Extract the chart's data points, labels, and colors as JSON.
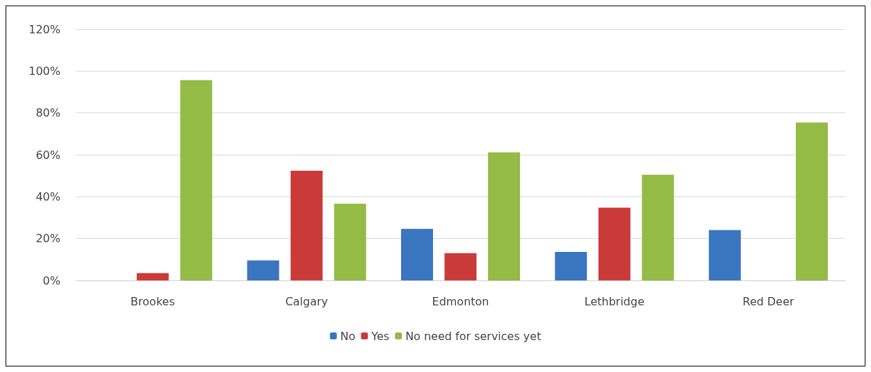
{
  "chart_data": {
    "type": "bar",
    "categories": [
      "Brookes",
      "Calgary",
      "Edmonton",
      "Lethbridge",
      "Red Deer"
    ],
    "series": [
      {
        "name": "No",
        "color": "#3a75c0",
        "values": [
          0,
          9.5,
          24.6,
          13.6,
          24
        ]
      },
      {
        "name": "Yes",
        "color": "#c93a38",
        "values": [
          3.5,
          52.4,
          13,
          34.7,
          0
        ]
      },
      {
        "name": "No need for services yet",
        "color": "#93bb45",
        "values": [
          95.6,
          36.6,
          61.2,
          50.5,
          75.4
        ]
      }
    ],
    "ylim": [
      0,
      120
    ],
    "yticks": [
      {
        "value": 0,
        "label": "0%"
      },
      {
        "value": 20,
        "label": "20%"
      },
      {
        "value": 40,
        "label": "40%"
      },
      {
        "value": 60,
        "label": "60%"
      },
      {
        "value": 80,
        "label": "80%"
      },
      {
        "value": 100,
        "label": "100%"
      },
      {
        "value": 120,
        "label": "120%"
      }
    ],
    "grid": "y",
    "legend": "bottom"
  }
}
